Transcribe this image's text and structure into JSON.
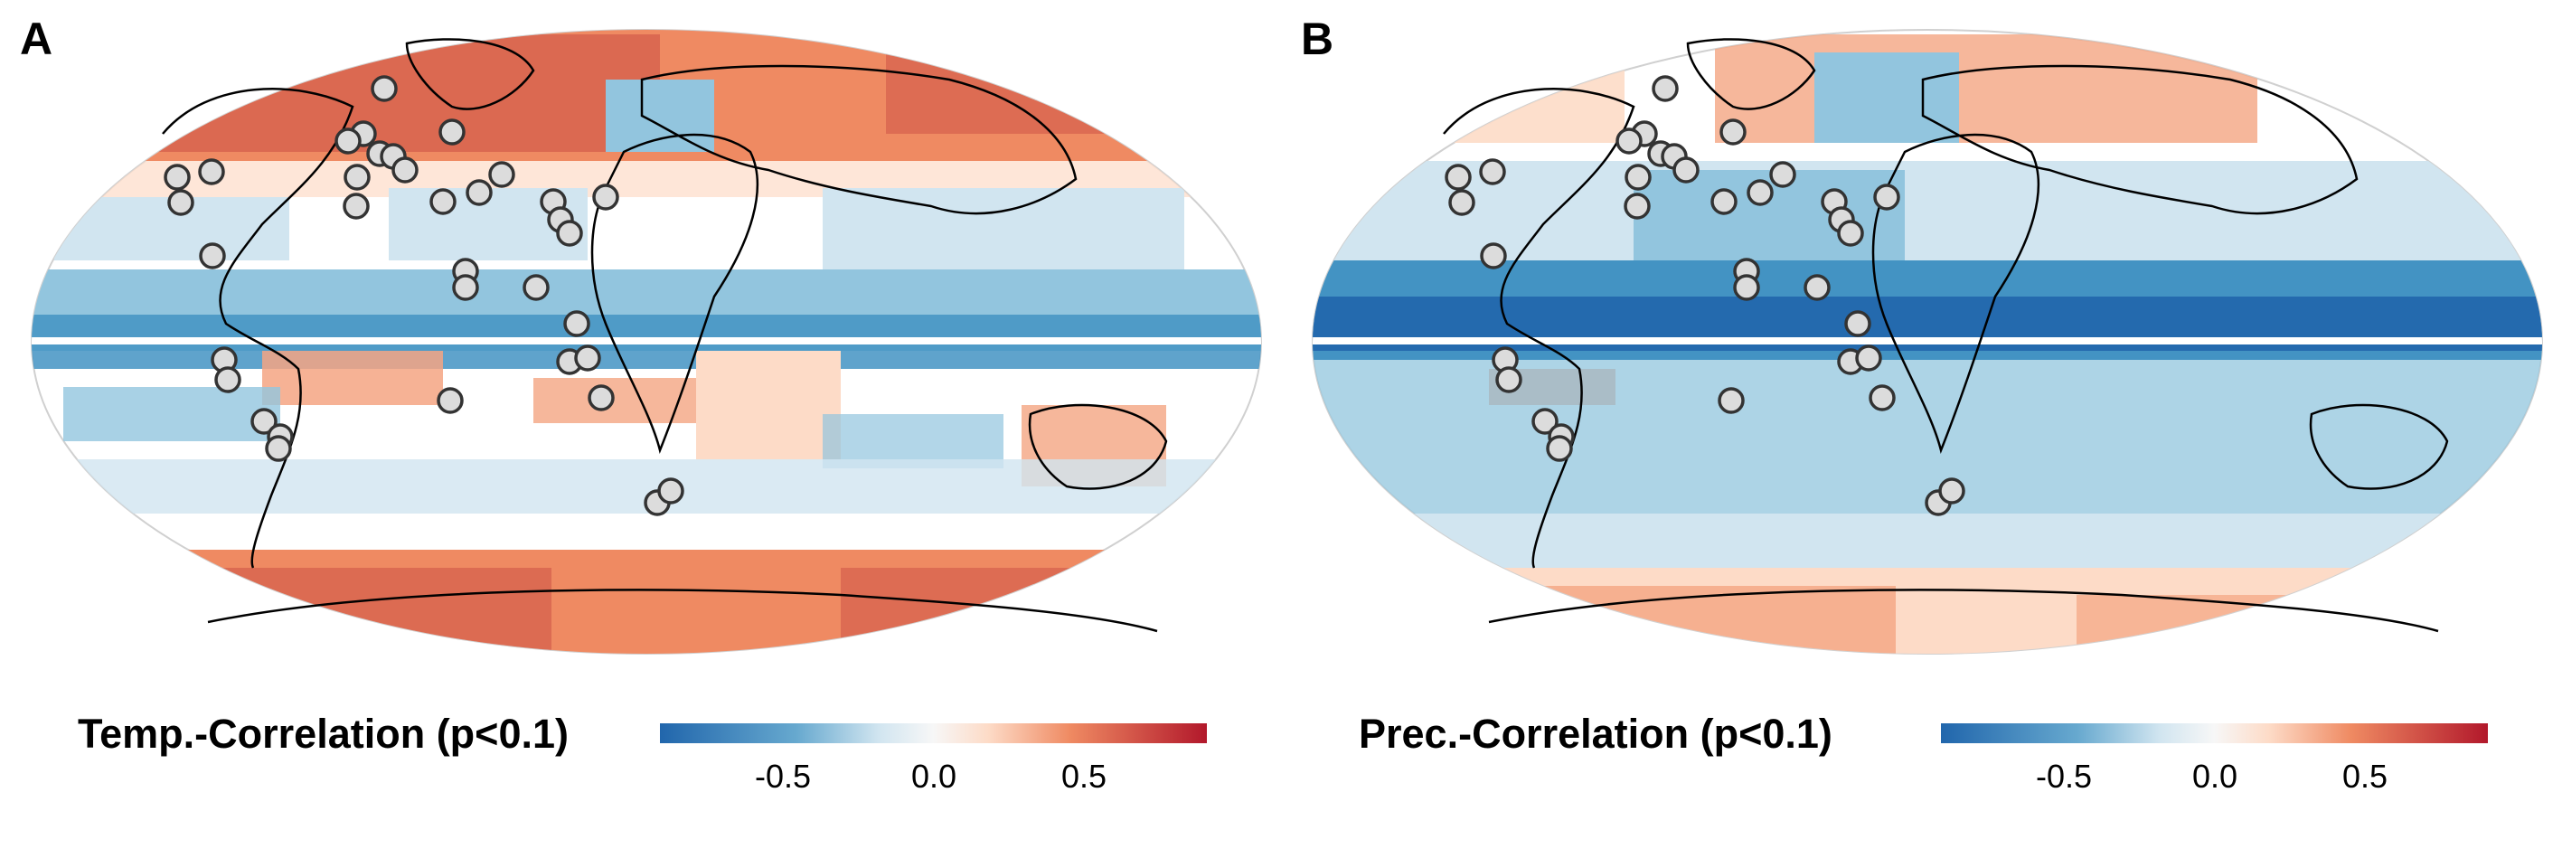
{
  "panels": [
    {
      "id": "A",
      "letter": "A",
      "legend_title": "Temp.-Correlation (p<0.1)",
      "colorbar": {
        "min": -1,
        "max": 1,
        "ticks": [
          "-0.5",
          "0.0",
          "0.5"
        ],
        "tick_values": [
          -0.5,
          0.0,
          0.5
        ]
      }
    },
    {
      "id": "B",
      "letter": "B",
      "legend_title": "Prec.-Correlation (p<0.1)",
      "colorbar": {
        "min": -1,
        "max": 1,
        "ticks": [
          "-0.5",
          "0.0",
          "0.5"
        ],
        "tick_values": [
          -0.5,
          0.0,
          0.5
        ]
      }
    }
  ],
  "colors": {
    "negative_strong": "#2166ac",
    "negative_mid": "#67a9cf",
    "negative_light": "#d1e5f0",
    "neutral": "#f7f7f7",
    "positive_light": "#fddbc7",
    "positive_mid": "#ef8a62",
    "positive_strong": "#b2182b",
    "coastline": "#000000",
    "site_marker_fill": "#dcdcdc",
    "site_marker_stroke": "#333333"
  },
  "map": {
    "projection": "Robinson",
    "site_markers": "open circles"
  }
}
